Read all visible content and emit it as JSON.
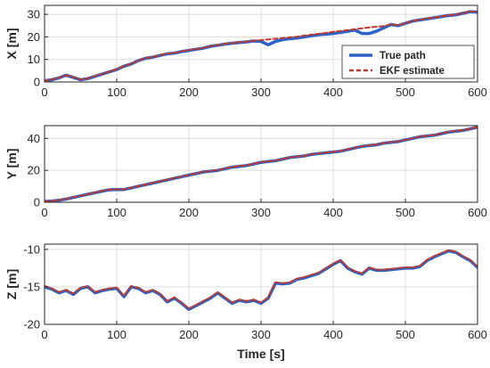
{
  "chart_data": [
    {
      "type": "line",
      "ylabel": "X [m]",
      "xlabel": "",
      "xlim": [
        0,
        600
      ],
      "ylim": [
        0,
        34
      ],
      "xticks": [
        0,
        100,
        200,
        300,
        400,
        500,
        600
      ],
      "yticks": [
        0,
        10,
        20,
        30
      ],
      "grid": true,
      "legend_position": "lower-right",
      "series": [
        {
          "name": "True path",
          "color": "#2a62c9",
          "style": "solid",
          "x": [
            0,
            10,
            20,
            30,
            40,
            50,
            60,
            70,
            80,
            90,
            100,
            110,
            120,
            130,
            140,
            150,
            160,
            170,
            180,
            190,
            200,
            210,
            220,
            230,
            240,
            250,
            260,
            270,
            280,
            290,
            300,
            310,
            320,
            330,
            340,
            350,
            360,
            370,
            380,
            390,
            400,
            410,
            420,
            430,
            440,
            450,
            460,
            470,
            480,
            490,
            500,
            510,
            520,
            530,
            540,
            550,
            560,
            570,
            580,
            590,
            600
          ],
          "values": [
            0.5,
            1.0,
            1.8,
            3.0,
            2.0,
            1.0,
            1.5,
            2.5,
            3.5,
            4.5,
            5.5,
            7.0,
            8.0,
            9.5,
            10.5,
            11.0,
            11.8,
            12.5,
            12.8,
            13.5,
            14.0,
            14.5,
            15.0,
            15.8,
            16.3,
            16.8,
            17.2,
            17.5,
            17.8,
            18.2,
            18.0,
            16.5,
            18.0,
            18.8,
            19.2,
            19.5,
            20.0,
            20.5,
            21.0,
            21.2,
            21.5,
            22.0,
            22.5,
            23.0,
            21.5,
            21.5,
            22.5,
            24.0,
            25.5,
            25.0,
            26.0,
            27.0,
            27.5,
            28.0,
            28.5,
            29.0,
            29.5,
            29.8,
            30.5,
            31.2,
            31.0
          ]
        },
        {
          "name": "EKF estimate",
          "color": "#c0392b",
          "style": "dashed",
          "x": [
            0,
            10,
            20,
            30,
            40,
            50,
            60,
            70,
            80,
            90,
            100,
            110,
            120,
            130,
            140,
            150,
            160,
            170,
            180,
            190,
            200,
            210,
            220,
            230,
            240,
            250,
            260,
            270,
            280,
            290,
            300,
            310,
            320,
            330,
            340,
            350,
            360,
            370,
            380,
            390,
            400,
            410,
            420,
            430,
            440,
            450,
            460,
            470,
            480,
            490,
            500,
            510,
            520,
            530,
            540,
            550,
            560,
            570,
            580,
            590,
            600
          ],
          "values": [
            0.5,
            1.1,
            1.9,
            3.0,
            2.1,
            1.1,
            1.6,
            2.6,
            3.5,
            4.6,
            5.6,
            7.0,
            8.1,
            9.5,
            10.6,
            11.1,
            11.9,
            12.6,
            12.9,
            13.6,
            14.1,
            14.6,
            15.1,
            15.9,
            16.4,
            16.9,
            17.3,
            17.6,
            17.9,
            18.3,
            18.6,
            18.9,
            19.2,
            19.5,
            19.8,
            20.1,
            20.6,
            21.0,
            21.4,
            21.8,
            22.2,
            22.6,
            23.0,
            23.4,
            23.8,
            24.2,
            24.5,
            24.8,
            25.6,
            25.2,
            26.1,
            27.1,
            27.6,
            28.1,
            28.6,
            29.1,
            29.6,
            29.9,
            30.6,
            31.3,
            31.1
          ]
        }
      ]
    },
    {
      "type": "line",
      "ylabel": "Y [m]",
      "xlabel": "",
      "xlim": [
        0,
        600
      ],
      "ylim": [
        0,
        48
      ],
      "xticks": [
        0,
        100,
        200,
        300,
        400,
        500,
        600
      ],
      "yticks": [
        0,
        20,
        40
      ],
      "grid": true,
      "series": [
        {
          "name": "True path",
          "color": "#2a62c9",
          "style": "solid",
          "x": [
            0,
            10,
            20,
            30,
            40,
            50,
            60,
            70,
            80,
            90,
            100,
            110,
            120,
            130,
            140,
            150,
            160,
            170,
            180,
            190,
            200,
            210,
            220,
            230,
            240,
            250,
            260,
            270,
            280,
            290,
            300,
            310,
            320,
            330,
            340,
            350,
            360,
            370,
            380,
            390,
            400,
            410,
            420,
            430,
            440,
            450,
            460,
            470,
            480,
            490,
            500,
            510,
            520,
            530,
            540,
            550,
            560,
            570,
            580,
            590,
            600
          ],
          "values": [
            0.5,
            0.8,
            1.2,
            2.0,
            3.0,
            4.0,
            5.0,
            6.0,
            7.0,
            7.8,
            8.0,
            8.0,
            9.0,
            10.0,
            11.0,
            12.0,
            13.0,
            14.0,
            15.0,
            16.0,
            17.0,
            18.0,
            19.0,
            19.5,
            20.0,
            21.0,
            22.0,
            22.5,
            23.0,
            24.0,
            25.0,
            25.5,
            26.0,
            27.0,
            28.0,
            28.5,
            29.0,
            30.0,
            30.5,
            31.0,
            31.5,
            32.0,
            33.0,
            34.0,
            35.0,
            35.5,
            36.0,
            37.0,
            37.5,
            38.0,
            39.0,
            40.0,
            41.0,
            41.5,
            42.0,
            43.0,
            44.0,
            44.5,
            45.0,
            46.0,
            47.0
          ]
        },
        {
          "name": "EKF estimate",
          "color": "#c0392b",
          "style": "dashed",
          "x": [
            0,
            10,
            20,
            30,
            40,
            50,
            60,
            70,
            80,
            90,
            100,
            110,
            120,
            130,
            140,
            150,
            160,
            170,
            180,
            190,
            200,
            210,
            220,
            230,
            240,
            250,
            260,
            270,
            280,
            290,
            300,
            310,
            320,
            330,
            340,
            350,
            360,
            370,
            380,
            390,
            400,
            410,
            420,
            430,
            440,
            450,
            460,
            470,
            480,
            490,
            500,
            510,
            520,
            530,
            540,
            550,
            560,
            570,
            580,
            590,
            600
          ],
          "values": [
            0.5,
            0.9,
            1.3,
            2.1,
            3.1,
            4.1,
            5.1,
            6.1,
            7.1,
            7.9,
            8.1,
            8.1,
            9.1,
            10.1,
            11.1,
            12.1,
            13.1,
            14.1,
            15.1,
            16.1,
            17.1,
            18.1,
            19.1,
            19.6,
            20.1,
            21.1,
            22.1,
            22.6,
            23.1,
            24.1,
            25.1,
            25.6,
            26.1,
            27.1,
            28.1,
            28.6,
            29.1,
            30.1,
            30.6,
            31.1,
            31.6,
            32.1,
            33.1,
            34.1,
            35.1,
            35.6,
            36.1,
            37.1,
            37.6,
            38.1,
            39.1,
            40.1,
            41.1,
            41.6,
            42.1,
            43.1,
            44.1,
            44.6,
            45.1,
            46.1,
            47.1
          ]
        }
      ]
    },
    {
      "type": "line",
      "ylabel": "Z [m]",
      "xlabel": "Time [s]",
      "xlim": [
        0,
        600
      ],
      "ylim": [
        -20,
        -9.3
      ],
      "xticks": [
        0,
        100,
        200,
        300,
        400,
        500,
        600
      ],
      "yticks": [
        -20,
        -15,
        -10
      ],
      "grid": true,
      "series": [
        {
          "name": "True path",
          "color": "#2a62c9",
          "style": "solid",
          "x": [
            0,
            10,
            20,
            30,
            40,
            50,
            60,
            70,
            80,
            90,
            100,
            110,
            120,
            130,
            140,
            150,
            160,
            170,
            180,
            190,
            200,
            210,
            220,
            230,
            240,
            250,
            260,
            270,
            280,
            290,
            300,
            310,
            320,
            330,
            340,
            350,
            360,
            370,
            380,
            390,
            400,
            410,
            420,
            430,
            440,
            450,
            460,
            470,
            480,
            490,
            500,
            510,
            520,
            530,
            540,
            550,
            560,
            570,
            580,
            590,
            600
          ],
          "values": [
            -15.0,
            -15.3,
            -15.8,
            -15.5,
            -16.0,
            -15.2,
            -15.0,
            -15.8,
            -15.5,
            -15.3,
            -15.2,
            -16.3,
            -15.0,
            -15.2,
            -15.8,
            -15.5,
            -16.0,
            -17.0,
            -16.5,
            -17.2,
            -18.0,
            -17.5,
            -17.0,
            -16.5,
            -15.8,
            -16.5,
            -17.2,
            -16.8,
            -17.0,
            -16.8,
            -17.2,
            -16.5,
            -14.5,
            -14.6,
            -14.5,
            -14.0,
            -13.8,
            -13.5,
            -13.2,
            -12.6,
            -12.0,
            -11.5,
            -12.5,
            -13.0,
            -13.3,
            -12.5,
            -12.8,
            -12.8,
            -12.7,
            -12.6,
            -12.5,
            -12.5,
            -12.3,
            -11.5,
            -11.0,
            -10.6,
            -10.2,
            -10.4,
            -11.0,
            -11.5,
            -12.4
          ]
        },
        {
          "name": "EKF estimate",
          "color": "#c0392b",
          "style": "dashed",
          "x": [
            0,
            10,
            20,
            30,
            40,
            50,
            60,
            70,
            80,
            90,
            100,
            110,
            120,
            130,
            140,
            150,
            160,
            170,
            180,
            190,
            200,
            210,
            220,
            230,
            240,
            250,
            260,
            270,
            280,
            290,
            300,
            310,
            320,
            330,
            340,
            350,
            360,
            370,
            380,
            390,
            400,
            410,
            420,
            430,
            440,
            450,
            460,
            470,
            480,
            490,
            500,
            510,
            520,
            530,
            540,
            550,
            560,
            570,
            580,
            590,
            600
          ],
          "values": [
            -14.9,
            -15.2,
            -15.7,
            -15.4,
            -15.9,
            -15.1,
            -14.9,
            -15.7,
            -15.4,
            -15.2,
            -15.1,
            -16.2,
            -14.9,
            -15.1,
            -15.7,
            -15.4,
            -15.9,
            -16.9,
            -16.4,
            -17.1,
            -17.9,
            -17.4,
            -16.9,
            -16.4,
            -15.7,
            -16.4,
            -17.1,
            -16.7,
            -16.9,
            -16.7,
            -17.1,
            -16.4,
            -14.4,
            -14.5,
            -14.4,
            -13.9,
            -13.7,
            -13.4,
            -13.1,
            -12.5,
            -11.9,
            -11.4,
            -12.4,
            -12.9,
            -13.2,
            -12.4,
            -12.7,
            -12.7,
            -12.6,
            -12.5,
            -12.4,
            -12.4,
            -12.2,
            -11.4,
            -10.9,
            -10.5,
            -10.1,
            -10.3,
            -10.9,
            -11.4,
            -12.3
          ]
        }
      ]
    }
  ]
}
